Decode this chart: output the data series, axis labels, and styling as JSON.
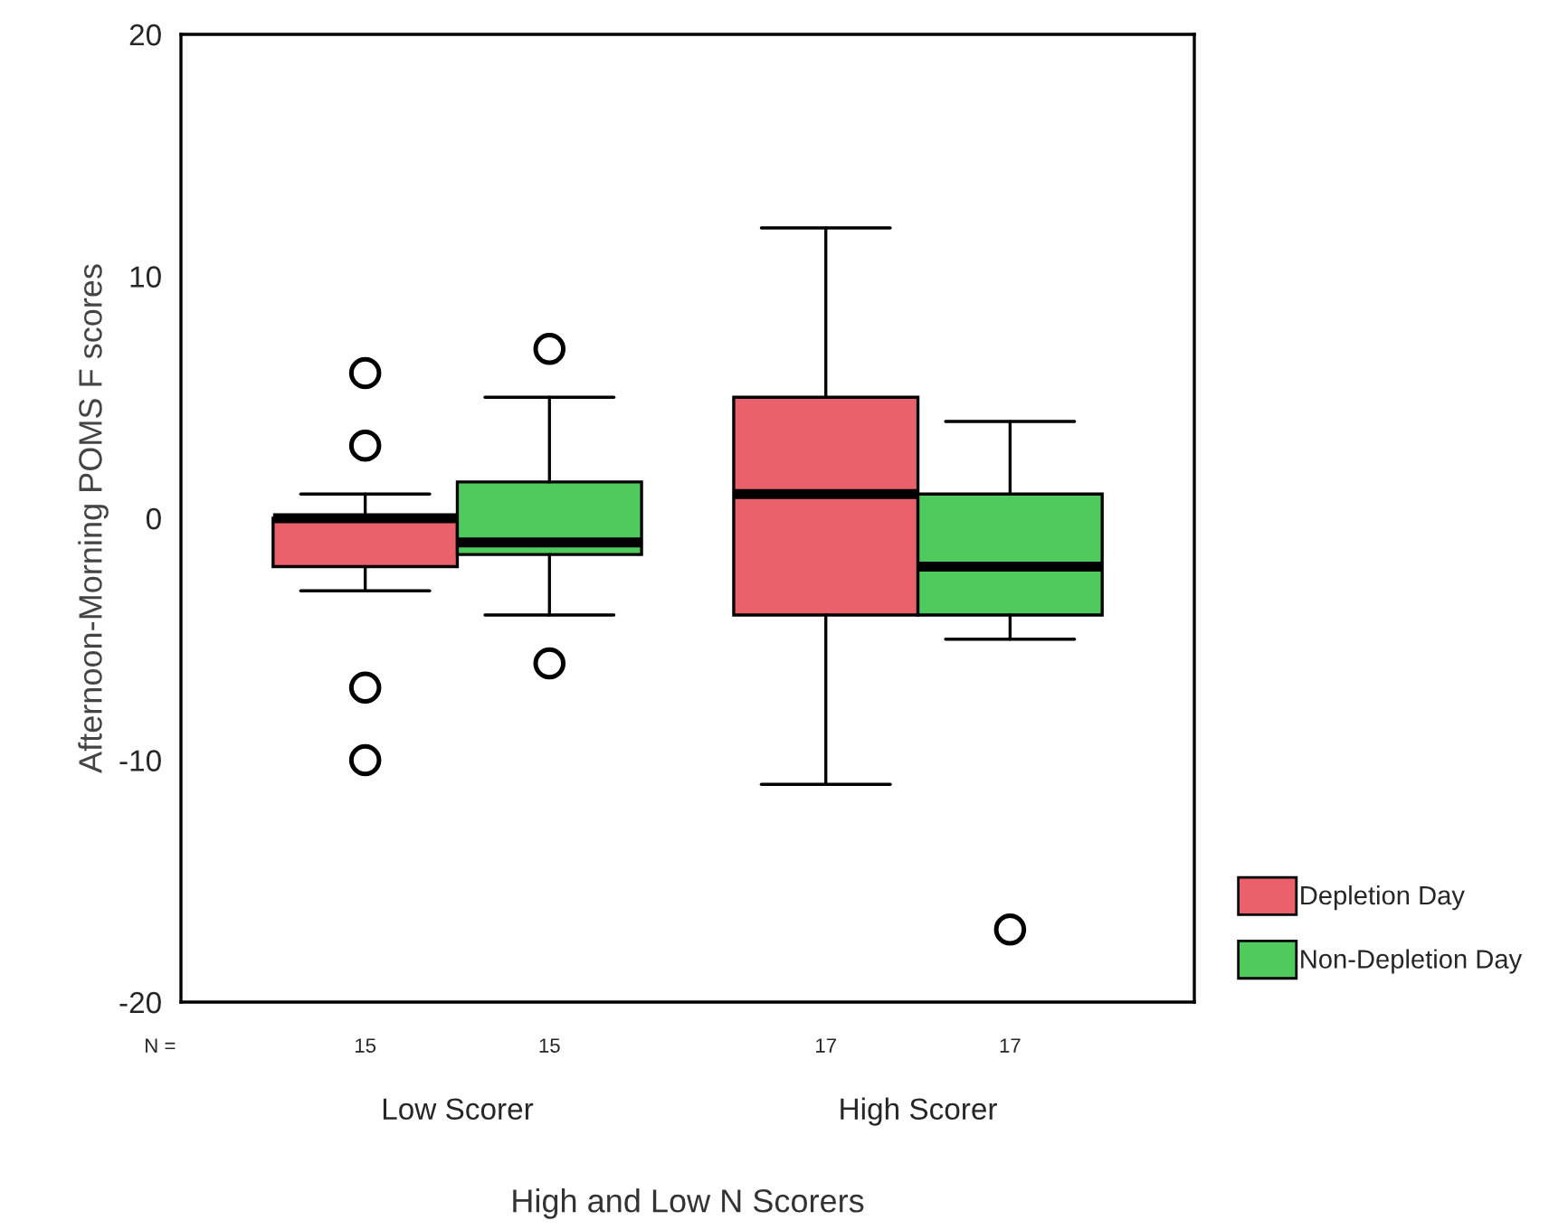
{
  "chart_data": {
    "type": "box",
    "xlabel": "High and Low N Scorers",
    "ylabel": "Afternoon-Morning POMS F scores",
    "categories": [
      "Low Scorer",
      "High Scorer"
    ],
    "series": [
      {
        "name": "Depletion Day",
        "color": "#e8616b",
        "boxes": [
          {
            "low": -3,
            "q1": -2,
            "median": 0,
            "q3": 0,
            "high": 1,
            "outliers": [
              6,
              3,
              -7,
              -10
            ]
          },
          {
            "low": -11,
            "q1": -4,
            "median": 1,
            "q3": 5,
            "high": 12
          }
        ]
      },
      {
        "name": "Non-Depletion Day",
        "color": "#4fcb5d",
        "boxes": [
          {
            "low": -4,
            "q1": -1.5,
            "median": -1,
            "q3": 1.5,
            "high": 5,
            "outliers": [
              7,
              -6
            ]
          },
          {
            "low": -5,
            "q1": -4,
            "median": -2,
            "q3": 1,
            "high": 4,
            "outliers": [
              -17
            ]
          }
        ]
      }
    ],
    "ylim": [
      -20,
      20
    ],
    "yticks": [
      -20,
      -10,
      0,
      10,
      20
    ],
    "legend": "right",
    "grid": false,
    "annotations": [
      "N =",
      "15",
      "15",
      "17",
      "17"
    ]
  }
}
